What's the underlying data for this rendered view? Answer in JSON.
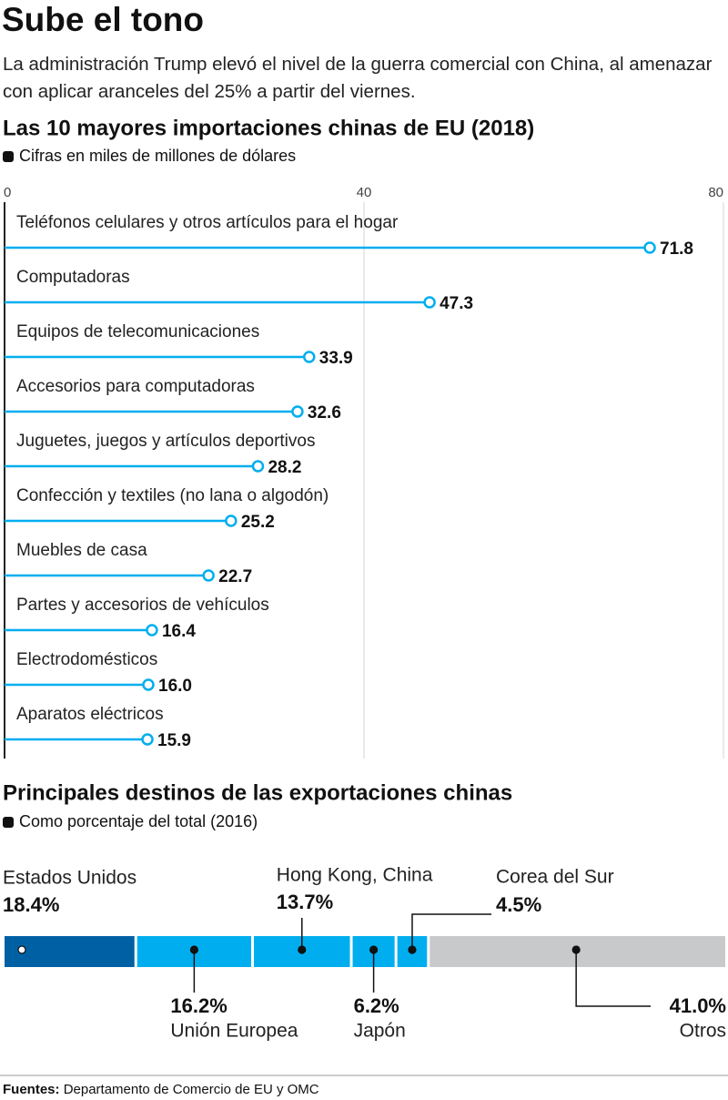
{
  "header": {
    "title": "Sube el tono",
    "subtitle": "La administración Trump elevó el nivel de la guerra comercial con China, al amenazar con aplicar aranceles del 25% a partir del viernes."
  },
  "chart_data": [
    {
      "type": "lollipop",
      "orientation": "horizontal",
      "title": "Las 10 mayores importaciones chinas de EU (2018)",
      "subtitle": "Cifras en miles de millones de dólares",
      "categories": [
        "Teléfonos celulares y otros artículos para el hogar",
        "Computadoras",
        "Equipos de telecomunicaciones",
        "Accesorios para computadoras",
        "Juguetes, juegos y artículos deportivos",
        "Confección y  textiles (no lana o algodón)",
        "Muebles de casa",
        "Partes y accesorios de vehículos",
        "Electrodomésticos",
        "Aparatos eléctricos"
      ],
      "values": [
        71.8,
        47.3,
        33.9,
        32.6,
        28.2,
        25.2,
        22.7,
        16.4,
        16.0,
        15.9
      ],
      "value_labels": [
        "71.8",
        "47.3",
        "33.9",
        "32.6",
        "28.2",
        "25.2",
        "22.7",
        "16.4",
        "16.0",
        "15.9"
      ],
      "color": "#00aeef",
      "xlim": [
        0,
        80
      ],
      "xticks": [
        0,
        40,
        80
      ],
      "grid": true
    },
    {
      "type": "stacked-bar",
      "title": "Principales destinos de las exportaciones chinas",
      "subtitle": "Como porcentaje del total (2016)",
      "categories": [
        "Estados Unidos",
        "Unión Europea",
        "Hong Kong, China",
        "Japón",
        "Corea del Sur",
        "Otros"
      ],
      "values": [
        18.4,
        16.2,
        13.7,
        6.2,
        4.5,
        41.0
      ],
      "value_labels": [
        "18.4%",
        "16.2%",
        "13.7%",
        "6.2%",
        "4.5%",
        "41.0%"
      ],
      "colors": [
        "#0060a4",
        "#00aeef",
        "#00aeef",
        "#00aeef",
        "#00aeef",
        "#c8c9cb"
      ]
    }
  ],
  "source": {
    "label": "Fuentes:",
    "text": "Departamento de Comercio de EU y OMC"
  }
}
